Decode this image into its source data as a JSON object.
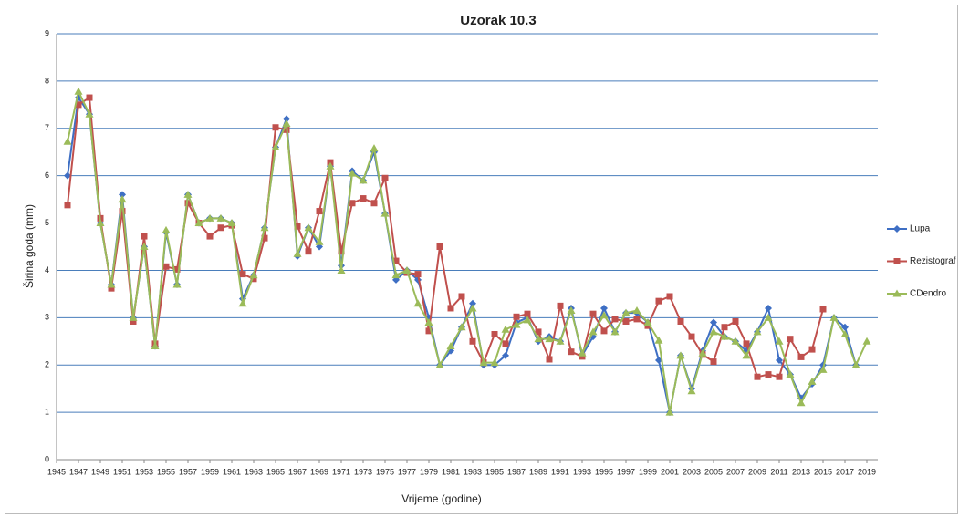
{
  "chart_data": {
    "type": "line",
    "title": "Uzorak 10.3",
    "x_label": "Vrijeme (godine)",
    "y_label": "Širina goda (mm)",
    "x": [
      1946,
      1947,
      1948,
      1949,
      1950,
      1951,
      1952,
      1953,
      1954,
      1955,
      1956,
      1957,
      1958,
      1959,
      1960,
      1961,
      1962,
      1963,
      1964,
      1965,
      1966,
      1967,
      1968,
      1969,
      1970,
      1971,
      1972,
      1973,
      1974,
      1975,
      1976,
      1977,
      1978,
      1979,
      1980,
      1981,
      1982,
      1983,
      1984,
      1985,
      1986,
      1987,
      1988,
      1989,
      1990,
      1991,
      1992,
      1993,
      1994,
      1995,
      1996,
      1997,
      1998,
      1999,
      2000,
      2001,
      2002,
      2003,
      2004,
      2005,
      2006,
      2007,
      2008,
      2009,
      2010,
      2011,
      2012,
      2013,
      2014,
      2015,
      2016,
      2017,
      2018,
      2019
    ],
    "series": [
      {
        "name": "Lupa",
        "color": "#3e6fc4",
        "marker": "diamond",
        "values": [
          6.0,
          7.65,
          7.3,
          5.0,
          3.7,
          5.6,
          3.0,
          4.5,
          2.4,
          4.8,
          3.7,
          5.6,
          5.0,
          5.1,
          5.1,
          5.0,
          3.4,
          3.9,
          4.9,
          6.6,
          7.2,
          4.3,
          4.9,
          4.5,
          6.2,
          4.1,
          6.1,
          5.9,
          6.5,
          5.2,
          3.8,
          4.0,
          3.8,
          3.0,
          2.0,
          2.3,
          2.8,
          3.3,
          2.0,
          2.0,
          2.2,
          2.9,
          3.0,
          2.5,
          2.6,
          2.5,
          3.2,
          2.2,
          2.6,
          3.2,
          2.7,
          3.1,
          3.1,
          2.9,
          2.1,
          1.0,
          2.2,
          1.5,
          2.3,
          2.9,
          2.6,
          2.5,
          2.3,
          2.7,
          3.2,
          2.1,
          1.8,
          1.3,
          1.6,
          2.0,
          3.0,
          2.8,
          2.0,
          null
        ]
      },
      {
        "name": "Rezistograf",
        "color": "#c0504d",
        "marker": "square",
        "values": [
          5.38,
          7.5,
          7.65,
          5.1,
          3.62,
          5.25,
          2.92,
          4.72,
          2.45,
          4.08,
          4.02,
          5.42,
          5.0,
          4.72,
          4.9,
          4.95,
          3.92,
          3.82,
          4.68,
          7.02,
          6.97,
          4.93,
          4.4,
          5.25,
          6.28,
          4.4,
          5.42,
          5.52,
          5.42,
          5.95,
          4.2,
          3.95,
          3.92,
          2.72,
          4.5,
          3.2,
          3.45,
          2.5,
          2.05,
          2.65,
          2.45,
          3.02,
          3.08,
          2.7,
          2.12,
          3.25,
          2.28,
          2.18,
          3.08,
          2.72,
          2.97,
          2.92,
          2.97,
          2.83,
          3.35,
          3.45,
          2.92,
          2.6,
          2.22,
          2.07,
          2.8,
          2.92,
          2.45,
          1.75,
          1.8,
          1.75,
          2.55,
          2.17,
          2.33,
          3.18,
          null,
          null,
          null,
          null
        ]
      },
      {
        "name": "CDendro",
        "color": "#9bbb59",
        "marker": "triangle",
        "values": [
          6.72,
          7.78,
          7.3,
          5.0,
          3.7,
          5.5,
          3.0,
          4.5,
          2.4,
          4.85,
          3.7,
          5.6,
          5.0,
          5.1,
          5.1,
          5.0,
          3.3,
          3.9,
          4.9,
          6.6,
          7.1,
          4.35,
          4.9,
          4.6,
          6.2,
          4.0,
          6.05,
          5.9,
          6.58,
          5.2,
          3.9,
          4.0,
          3.3,
          2.9,
          2.0,
          2.4,
          2.8,
          3.2,
          2.05,
          2.05,
          2.75,
          2.85,
          2.95,
          2.55,
          2.55,
          2.5,
          3.15,
          2.25,
          2.7,
          3.05,
          2.7,
          3.1,
          3.15,
          2.9,
          2.52,
          1.0,
          2.2,
          1.45,
          2.25,
          2.7,
          2.6,
          2.5,
          2.2,
          2.7,
          3.0,
          2.5,
          1.8,
          1.2,
          1.65,
          1.9,
          3.0,
          2.65,
          2.0,
          2.5
        ]
      }
    ],
    "xlim": [
      1945,
      2019
    ],
    "xticks": [
      1945,
      1947,
      1949,
      1951,
      1953,
      1955,
      1957,
      1959,
      1961,
      1963,
      1965,
      1967,
      1969,
      1971,
      1973,
      1975,
      1977,
      1979,
      1981,
      1983,
      1985,
      1987,
      1989,
      1991,
      1993,
      1995,
      1997,
      1999,
      2001,
      2003,
      2005,
      2007,
      2009,
      2011,
      2013,
      2015,
      2017,
      2019
    ],
    "ylim": [
      0,
      9
    ],
    "yticks": [
      0,
      1,
      2,
      3,
      4,
      5,
      6,
      7,
      8,
      9
    ],
    "grid": true,
    "legend": "right"
  }
}
